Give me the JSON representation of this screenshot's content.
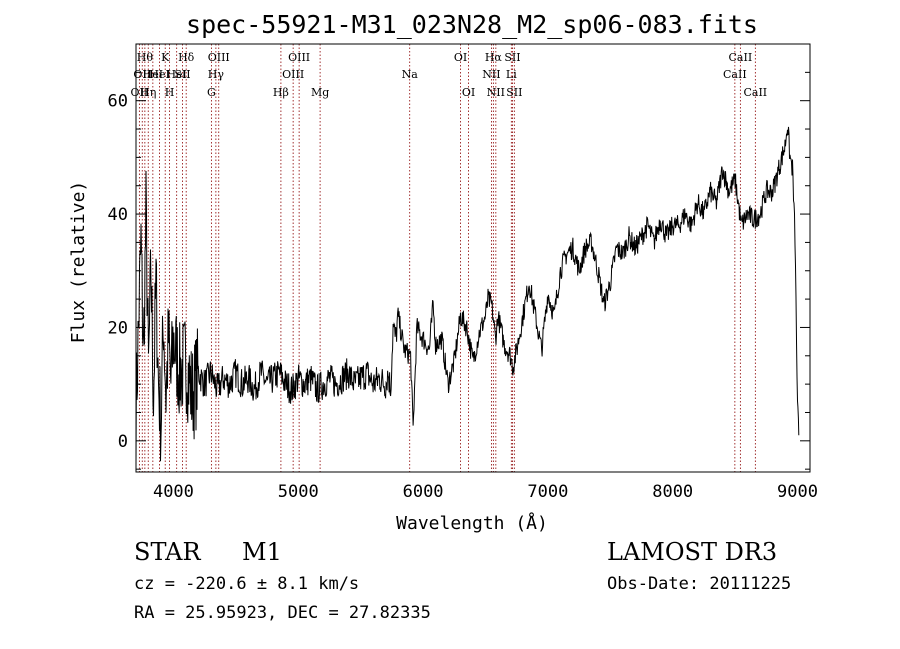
{
  "chart_data": {
    "type": "line",
    "title": "spec-55921-M31_023N28_M2_sp06-083.fits",
    "xlabel": "Wavelength (Å)",
    "ylabel": "Flux (relative)",
    "xlim": [
      3700,
      9100
    ],
    "ylim": [
      -5.5,
      70
    ],
    "x_ticks": [
      4000,
      5000,
      6000,
      7000,
      8000,
      9000
    ],
    "y_ticks": [
      0,
      20,
      40,
      60
    ],
    "x_minor_step": 200,
    "y_minor_step": 5,
    "series": [
      {
        "name": "flux",
        "x": [
          3700,
          3720,
          3740,
          3760,
          3780,
          3800,
          3820,
          3840,
          3860,
          3880,
          3900,
          3920,
          3940,
          3960,
          3980,
          4000,
          4050,
          4100,
          4150,
          4200,
          4250,
          4300,
          4350,
          4400,
          4450,
          4500,
          4550,
          4600,
          4650,
          4700,
          4750,
          4800,
          4850,
          4900,
          4950,
          5000,
          5050,
          5100,
          5150,
          5200,
          5250,
          5300,
          5350,
          5400,
          5450,
          5500,
          5550,
          5600,
          5650,
          5700,
          5720,
          5740,
          5760,
          5780,
          5800,
          5850,
          5900,
          5920,
          5950,
          6000,
          6050,
          6080,
          6100,
          6150,
          6200,
          6250,
          6300,
          6350,
          6400,
          6450,
          6500,
          6520,
          6550,
          6580,
          6600,
          6650,
          6700,
          6720,
          6750,
          6800,
          6850,
          6900,
          6950,
          7000,
          7050,
          7100,
          7150,
          7200,
          7250,
          7300,
          7350,
          7400,
          7450,
          7500,
          7550,
          7600,
          7650,
          7700,
          7750,
          7800,
          7850,
          7900,
          7950,
          8000,
          8050,
          8100,
          8150,
          8200,
          8250,
          8300,
          8350,
          8400,
          8450,
          8500,
          8550,
          8600,
          8650,
          8700,
          8750,
          8800,
          8850,
          8900,
          8920,
          8940,
          8960,
          8980,
          9000,
          9010
        ],
        "y": [
          5,
          20,
          35,
          15,
          40,
          12,
          30,
          8,
          28,
          10,
          3,
          22,
          8,
          18,
          10,
          18,
          12,
          14,
          8,
          12,
          10,
          12,
          9,
          11,
          10,
          12,
          10,
          11,
          9,
          12,
          10,
          11,
          12,
          10,
          9,
          11,
          10,
          11,
          9,
          10,
          11,
          10,
          11,
          12,
          10,
          11,
          12,
          10,
          11,
          10,
          12,
          9,
          20,
          18,
          22,
          16,
          15,
          2,
          20,
          18,
          16,
          24,
          17,
          18,
          10,
          14,
          22,
          20,
          14,
          19,
          22,
          25,
          24,
          18,
          22,
          17,
          15,
          13,
          16,
          22,
          28,
          22,
          16,
          26,
          22,
          30,
          33,
          34,
          30,
          34,
          35,
          30,
          24,
          28,
          34,
          33,
          36,
          34,
          36,
          38,
          35,
          39,
          36,
          38,
          38,
          40,
          38,
          42,
          40,
          44,
          42,
          48,
          44,
          46,
          38,
          40,
          39,
          40,
          44,
          44,
          48,
          52,
          56,
          50,
          48,
          36,
          6,
          1
        ]
      }
    ],
    "lines": [
      {
        "wl": 3727,
        "lbl": "OII",
        "row": 3
      },
      {
        "wl": 3750,
        "lbl": "OII",
        "row": 2
      },
      {
        "wl": 3771,
        "lbl": "Hθ",
        "row": 1
      },
      {
        "wl": 3798,
        "lbl": "Hη",
        "row": 3
      },
      {
        "wl": 3835,
        "lbl": "He I",
        "row": 2
      },
      {
        "wl": 3889,
        "lbl": "He I",
        "row": 2
      },
      {
        "wl": 3934,
        "lbl": "K",
        "row": 1
      },
      {
        "wl": 3969,
        "lbl": "H",
        "row": 3
      },
      {
        "wl": 4026,
        "lbl": "He I",
        "row": 2
      },
      {
        "wl": 4072,
        "lbl": "SII",
        "row": 2
      },
      {
        "wl": 4102,
        "lbl": "Hδ",
        "row": 1
      },
      {
        "wl": 4304,
        "lbl": "G",
        "row": 3
      },
      {
        "wl": 4340,
        "lbl": "Hγ",
        "row": 2
      },
      {
        "wl": 4363,
        "lbl": "OIII",
        "row": 1
      },
      {
        "wl": 4861,
        "lbl": "Hβ",
        "row": 3
      },
      {
        "wl": 4959,
        "lbl": "OIII",
        "row": 2
      },
      {
        "wl": 5007,
        "lbl": "OIII",
        "row": 1
      },
      {
        "wl": 5175,
        "lbl": "Mg",
        "row": 3
      },
      {
        "wl": 5893,
        "lbl": "Na",
        "row": 2
      },
      {
        "wl": 6300,
        "lbl": "OI",
        "row": 1
      },
      {
        "wl": 6364,
        "lbl": "OI",
        "row": 3
      },
      {
        "wl": 6548,
        "lbl": "NII",
        "row": 2
      },
      {
        "wl": 6563,
        "lbl": "Hα",
        "row": 1
      },
      {
        "wl": 6583,
        "lbl": "NII",
        "row": 3
      },
      {
        "wl": 6707,
        "lbl": "Li",
        "row": 2
      },
      {
        "wl": 6716,
        "lbl": "SII",
        "row": 1
      },
      {
        "wl": 6731,
        "lbl": "SII",
        "row": 3
      },
      {
        "wl": 8498,
        "lbl": "CaII",
        "row": 2
      },
      {
        "wl": 8542,
        "lbl": "CaII",
        "row": 1
      },
      {
        "wl": 8662,
        "lbl": "CaII",
        "row": 3
      }
    ]
  },
  "info": {
    "object_class": "STAR",
    "subclass": "M1",
    "survey": "LAMOST DR3",
    "cz": "cz = -220.6 ± 8.1 km/s",
    "obs_date": "Obs-Date: 20111225",
    "coords": "RA =  25.95923, DEC =  27.82335"
  },
  "colors": {
    "axis": "#000000",
    "spectrum": "#000000",
    "line_marker": "#8b0000"
  }
}
